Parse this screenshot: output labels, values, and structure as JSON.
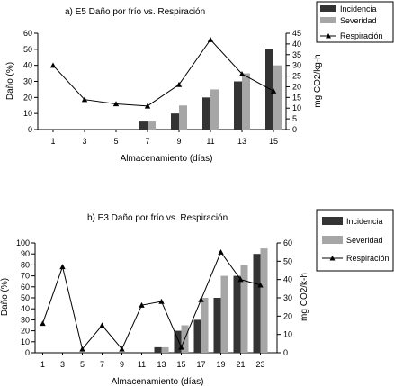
{
  "chart_data": [
    {
      "type": "bar",
      "title": "a) E5 Daño por frío vs. Respiración",
      "xlabel": "Almacenamiento (días)",
      "ylabel": "Daño (%)",
      "y2label": "mg CO2/kg-h",
      "categories": [
        "1",
        "3",
        "5",
        "7",
        "9",
        "11",
        "13",
        "15"
      ],
      "ylim": [
        0,
        60
      ],
      "y2lim": [
        0,
        45
      ],
      "yticks": [
        "0",
        "10",
        "20",
        "30",
        "40",
        "50",
        "60"
      ],
      "y2ticks": [
        "0",
        "5",
        "10",
        "15",
        "20",
        "25",
        "30",
        "35",
        "40",
        "45"
      ],
      "grid": false,
      "legend_position": "top-right",
      "series": [
        {
          "name": "Incidencia",
          "kind": "bar",
          "axis": "left",
          "color": "#333333",
          "values": [
            0,
            0,
            0,
            5,
            10,
            20,
            30,
            50
          ]
        },
        {
          "name": "Severidad",
          "kind": "bar",
          "axis": "left",
          "color": "#a6a6a6",
          "values": [
            0,
            0,
            0,
            5,
            15,
            25,
            35,
            40
          ]
        },
        {
          "name": "Respiración",
          "kind": "line",
          "axis": "right",
          "color": "#000000",
          "marker": "triangle",
          "values": [
            30,
            14,
            12,
            11,
            21,
            42,
            26,
            18
          ]
        }
      ]
    },
    {
      "type": "bar",
      "title": "b) E3 Daño por frío vs. Respiración",
      "xlabel": "Almacenamiento (días)",
      "ylabel": "Daño (%)",
      "y2label": "mg CO2/k-h",
      "categories": [
        "1",
        "3",
        "5",
        "7",
        "9",
        "11",
        "13",
        "15",
        "17",
        "19",
        "21",
        "23"
      ],
      "ylim": [
        0,
        100
      ],
      "y2lim": [
        0,
        60
      ],
      "yticks": [
        "0",
        "10",
        "20",
        "30",
        "40",
        "50",
        "60",
        "70",
        "80",
        "90",
        "100"
      ],
      "y2ticks": [
        "0",
        "10",
        "20",
        "30",
        "40",
        "50",
        "60"
      ],
      "grid": false,
      "legend_position": "top-right",
      "series": [
        {
          "name": "Incidencia",
          "kind": "bar",
          "axis": "left",
          "color": "#333333",
          "values": [
            0,
            0,
            0,
            0,
            0,
            0,
            5,
            20,
            30,
            50,
            70,
            90
          ]
        },
        {
          "name": "Severidad",
          "kind": "bar",
          "axis": "left",
          "color": "#a6a6a6",
          "values": [
            0,
            0,
            0,
            0,
            0,
            0,
            5,
            25,
            50,
            70,
            80,
            95
          ]
        },
        {
          "name": "Respiración",
          "kind": "line",
          "axis": "right",
          "color": "#000000",
          "marker": "triangle",
          "values": [
            16,
            47,
            2,
            15,
            2,
            26,
            28,
            3,
            29,
            55,
            40,
            37
          ]
        }
      ]
    }
  ]
}
